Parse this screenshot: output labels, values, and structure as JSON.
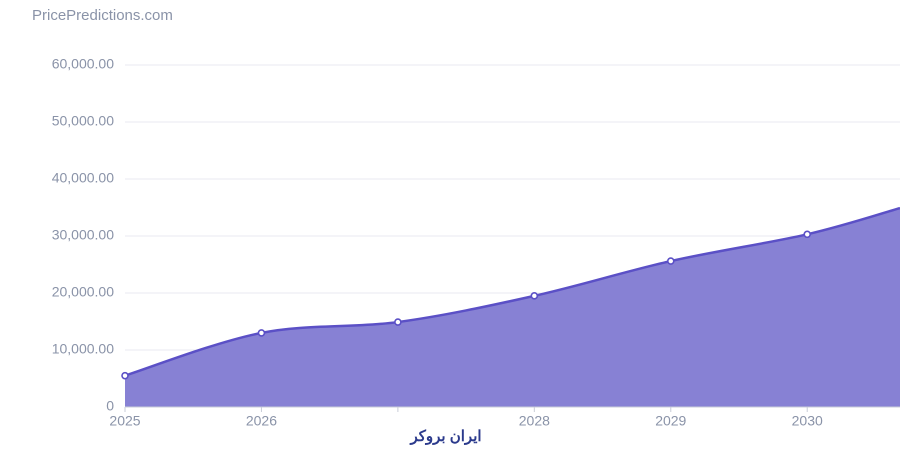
{
  "chart_data": {
    "type": "area",
    "source": "PricePredictions.com",
    "watermark": "ایران بروکر",
    "x": [
      2025,
      2026,
      2027,
      2028,
      2029,
      2030,
      2030.68
    ],
    "values": [
      5500,
      13000,
      14900,
      19500,
      25600,
      30300,
      34900
    ],
    "color": "#8781d4",
    "line_color": "#5b50c6",
    "xlim": [
      2025,
      2030.68
    ],
    "xticks": [
      2025,
      2026,
      {
        "value": 2027,
        "label": null
      },
      2028,
      2029,
      2030
    ],
    "ylim": [
      0,
      60000
    ],
    "yticks": [
      0,
      {
        "value": 10000,
        "label": "10,000.00"
      },
      {
        "value": 20000,
        "label": "20,000.00"
      },
      {
        "value": 30000,
        "label": "30,000.00"
      },
      {
        "value": 40000,
        "label": "40,000.00"
      },
      {
        "value": 50000,
        "label": "50,000.00"
      },
      {
        "value": 60000,
        "label": "60,000.00"
      }
    ],
    "grid": true
  }
}
